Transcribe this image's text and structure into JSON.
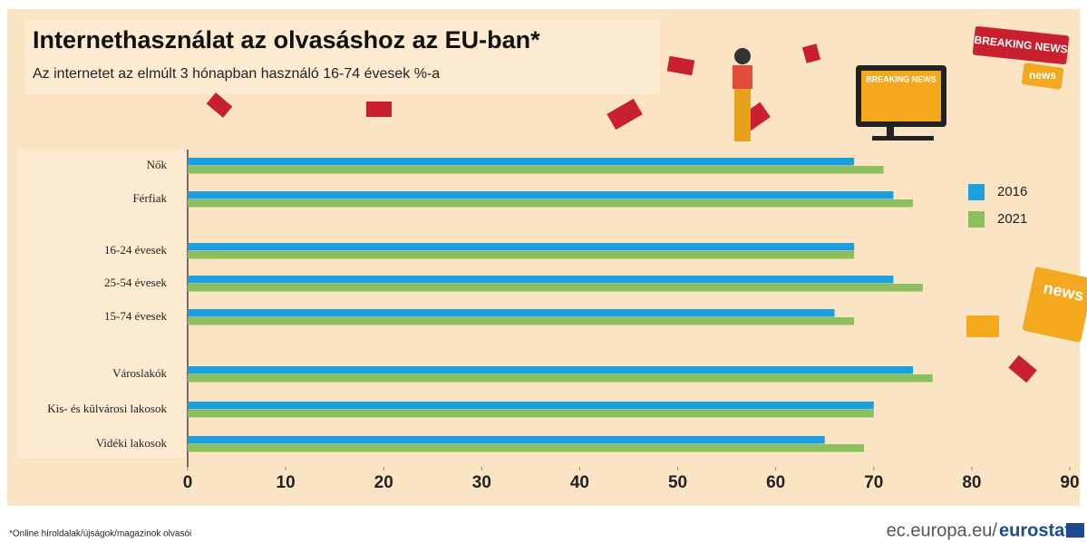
{
  "chart_data": {
    "type": "hbar",
    "title": "Internethasználat az olvasáshoz az EU-ban*",
    "subtitle": "Az internetet az elmúlt 3 hónapban használó 16-74 évesek %-a",
    "categories": [
      "Nők",
      "Férfiak",
      "16-24 évesek",
      "25-54 évesek",
      "15-74 évesek",
      "Városlakók",
      "Kis- és külvárosi lakosok",
      "Vidéki lakosok"
    ],
    "series": [
      {
        "name": "2016",
        "color": "#1a9fdf",
        "values": [
          68,
          72,
          68,
          72,
          66,
          74,
          70,
          65
        ]
      },
      {
        "name": "2021",
        "color": "#8dbf5d",
        "values": [
          71,
          74,
          68,
          75,
          68,
          76,
          70,
          69
        ]
      }
    ],
    "xlim": [
      0,
      90
    ],
    "xticks": [
      0,
      10,
      20,
      30,
      40,
      50,
      60,
      70,
      80,
      90
    ],
    "legend": "right"
  },
  "footnote": "*Online híroldalak/újságok/magazinok olvasói",
  "source": {
    "domain": "ec.europa.eu/",
    "brand": "eurostat"
  },
  "decor_texts": [
    "BREAKING NEWS",
    "news",
    "BREAKING NEWS",
    "news"
  ]
}
